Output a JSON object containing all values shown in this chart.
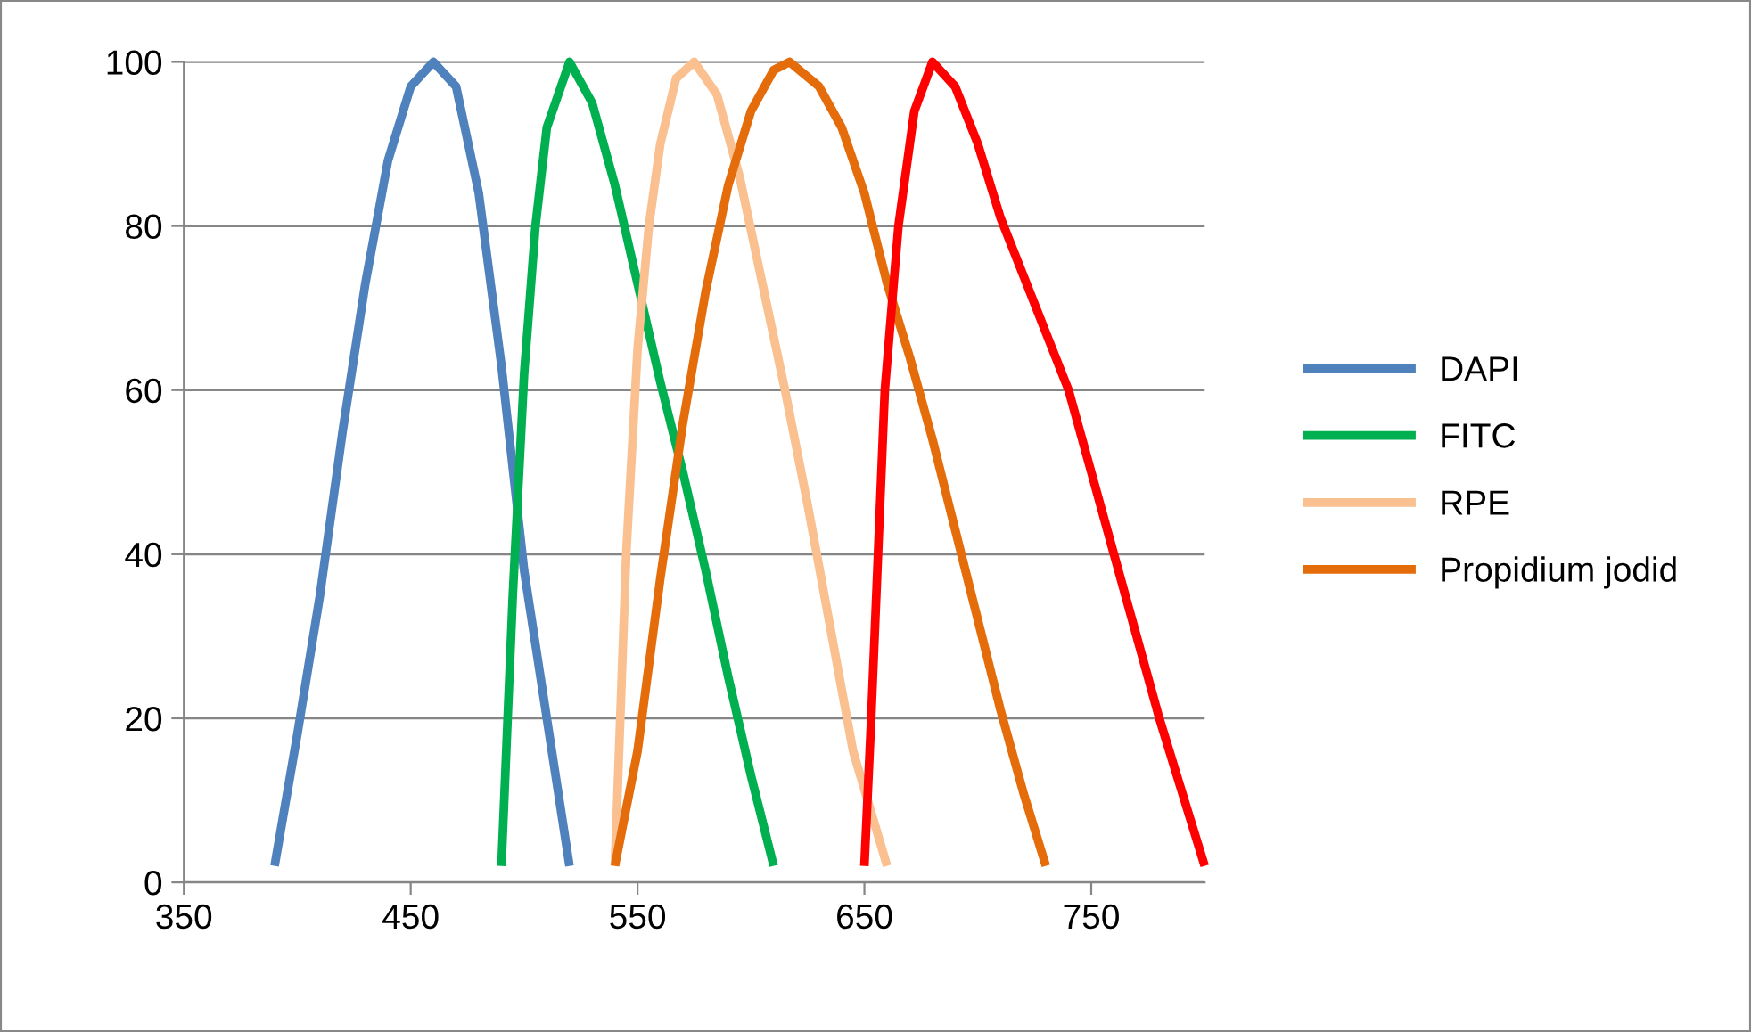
{
  "chart_data": {
    "type": "line",
    "xlim": [
      350,
      800
    ],
    "xticks": [
      350,
      450,
      550,
      650,
      750
    ],
    "ylim": [
      0,
      100
    ],
    "yticks": [
      0,
      20,
      40,
      60,
      80,
      100
    ],
    "grid": "y",
    "legend": "right",
    "marker": "none",
    "line_style": "solid",
    "series": [
      {
        "name": "DAPI",
        "color": "#4f81bd",
        "x": [
          390,
          400,
          410,
          420,
          430,
          440,
          450,
          460,
          470,
          480,
          490,
          500,
          510,
          520
        ],
        "values": [
          2,
          18,
          35,
          55,
          73,
          88,
          97,
          100,
          97,
          84,
          63,
          38,
          20,
          2
        ]
      },
      {
        "name": "FITC",
        "color": "#00b050",
        "x": [
          490,
          495,
          500,
          505,
          510,
          520,
          530,
          540,
          550,
          560,
          570,
          580,
          590,
          600,
          610
        ],
        "values": [
          2,
          35,
          62,
          80,
          92,
          100,
          95,
          85,
          73,
          61,
          50,
          38,
          25,
          13,
          2
        ]
      },
      {
        "name": "RPE",
        "color": "#fac090",
        "x": [
          540,
          545,
          550,
          555,
          560,
          567,
          575,
          585,
          595,
          605,
          615,
          625,
          635,
          645,
          660
        ],
        "values": [
          2,
          40,
          65,
          80,
          90,
          98,
          100,
          96,
          86,
          73,
          60,
          46,
          31,
          16,
          2
        ]
      },
      {
        "name": "Propidium jodid",
        "color": "#e46c0a",
        "x": [
          540,
          550,
          560,
          570,
          580,
          590,
          600,
          610,
          617,
          630,
          640,
          650,
          660,
          670,
          680,
          690,
          700,
          710,
          720,
          730
        ],
        "values": [
          2,
          16,
          37,
          56,
          72,
          85,
          94,
          99,
          100,
          97,
          92,
          84,
          73,
          64,
          54,
          43,
          32,
          21,
          11,
          2
        ]
      },
      {
        "color": "#ff0000",
        "x": [
          650,
          653,
          656,
          659,
          665,
          672,
          680,
          690,
          700,
          710,
          720,
          730,
          740,
          750,
          760,
          770,
          780,
          790,
          800
        ],
        "values": [
          2,
          20,
          40,
          60,
          80,
          94,
          100,
          97,
          90,
          81,
          74,
          67,
          60,
          50,
          40,
          30,
          20,
          11,
          2
        ]
      }
    ]
  }
}
